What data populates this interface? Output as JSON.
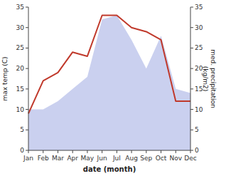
{
  "chart_data": {
    "type": "line",
    "xlabel": "date (month)",
    "ylabel": "max temp (C)",
    "y2label": "med. precipitation\n(kg/m2)",
    "categories": [
      "Jan",
      "Feb",
      "Mar",
      "Apr",
      "May",
      "Jun",
      "Jul",
      "Aug",
      "Sep",
      "Oct",
      "Nov",
      "Dec"
    ],
    "series": [
      {
        "type": "area",
        "axis": "y2",
        "color": "#b3bce8",
        "values": [
          10,
          10,
          12,
          15,
          18,
          32,
          33,
          27,
          20,
          28,
          15,
          14
        ]
      },
      {
        "type": "line",
        "color": "#c0392b",
        "values": [
          9,
          17,
          19,
          24,
          23,
          33,
          33,
          30,
          29,
          27,
          12,
          12
        ]
      }
    ],
    "ylim": [
      0,
      35
    ],
    "yticks": [
      0,
      5,
      10,
      15,
      20,
      25,
      30,
      35
    ],
    "y2lim": [
      0,
      35
    ],
    "y2ticks": [
      0,
      5,
      10,
      15,
      20,
      25,
      30,
      35
    ],
    "grid": false
  }
}
